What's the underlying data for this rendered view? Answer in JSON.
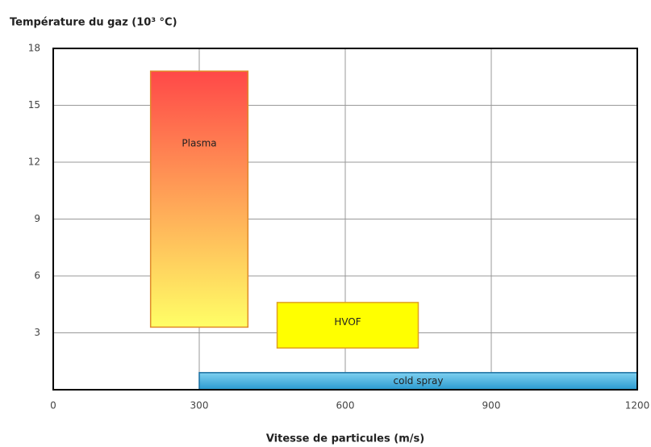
{
  "chart_data": {
    "type": "range",
    "title": "Température du gaz (10³ °C)",
    "x_label": "Vitesse de particules (m/s)",
    "xlim": [
      0,
      1200
    ],
    "xticks": [
      0,
      300,
      600,
      900,
      1200
    ],
    "ylim": [
      0,
      18
    ],
    "yticks": [
      3,
      6,
      9,
      12,
      15,
      18
    ],
    "grid": true,
    "series": [
      {
        "name": "Plasma",
        "x": [
          200,
          400
        ],
        "y": [
          3.3,
          16.8
        ],
        "colors": [
          "#ff4848",
          "#ffff66"
        ],
        "border": "#e08a2a"
      },
      {
        "name": "HVOF",
        "x": [
          460,
          750
        ],
        "y": [
          2.2,
          4.6
        ],
        "colors": [
          "#ffff00",
          "#ffff00"
        ],
        "border": "#e0a020"
      },
      {
        "name": "cold spray",
        "x": [
          300,
          1200
        ],
        "y": [
          0,
          0.9
        ],
        "colors": [
          "#7fd0f0",
          "#2a9ad0"
        ],
        "border": "#1a6fa0"
      }
    ]
  }
}
